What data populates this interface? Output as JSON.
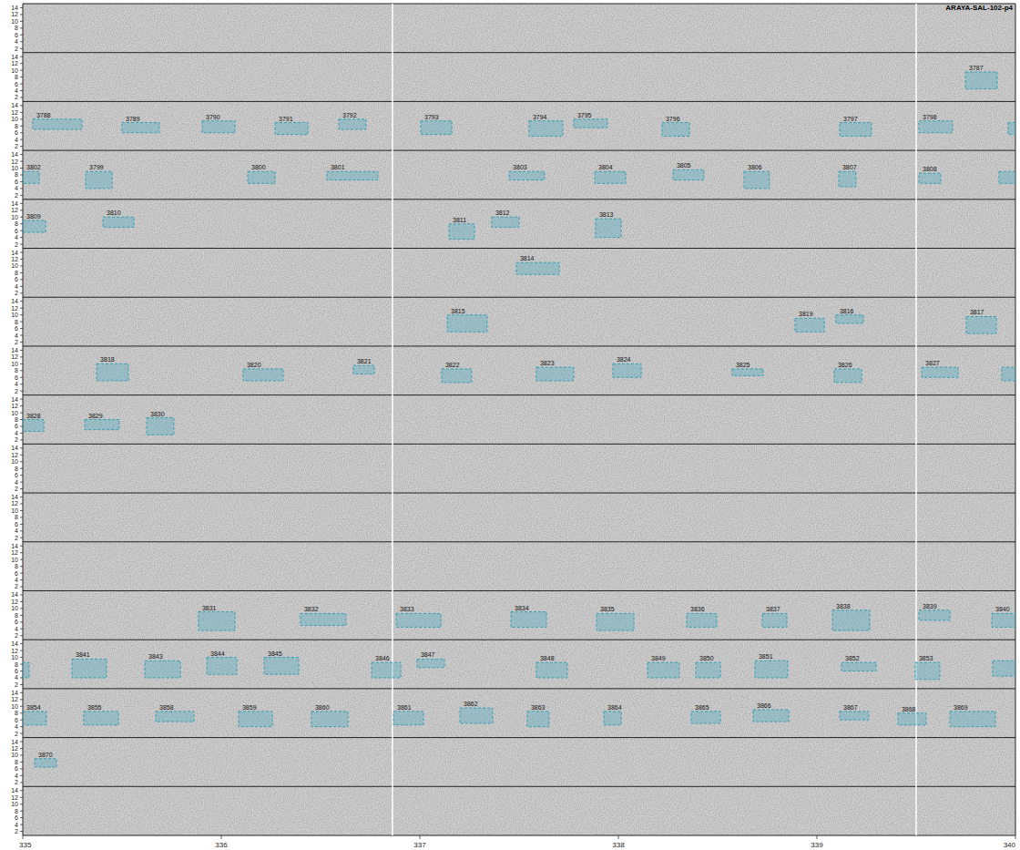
{
  "chart_data": {
    "type": "spectrogram",
    "title": "ARAYA-SAL-102-p4",
    "xlim": [
      335,
      340
    ],
    "xticks": [
      335,
      336,
      337,
      338,
      339,
      340
    ],
    "ylim": [
      0.8,
      15.2
    ],
    "yticks": [
      2,
      4,
      6,
      8,
      10,
      12,
      14
    ],
    "rows": 17,
    "segment_boundaries": [
      336.862,
      339.5
    ],
    "detections": [
      {
        "label": 3787,
        "row": 1,
        "x0": 339.748,
        "x1": 339.908,
        "y0": 4.5,
        "y1": 9.5
      },
      {
        "label": 3788,
        "row": 2,
        "x0": 335.05,
        "x1": 335.298,
        "y0": 7,
        "y1": 10
      },
      {
        "label": 3789,
        "row": 2,
        "x0": 335.5,
        "x1": 335.688,
        "y0": 6,
        "y1": 9
      },
      {
        "label": 3790,
        "row": 2,
        "x0": 335.904,
        "x1": 336.069,
        "y0": 6,
        "y1": 9.5
      },
      {
        "label": 3791,
        "row": 2,
        "x0": 336.271,
        "x1": 336.436,
        "y0": 5.5,
        "y1": 9
      },
      {
        "label": 3792,
        "row": 2,
        "x0": 336.592,
        "x1": 336.729,
        "y0": 7,
        "y1": 10
      },
      {
        "label": 3793,
        "row": 2,
        "x0": 337.005,
        "x1": 337.161,
        "y0": 5.5,
        "y1": 9.5
      },
      {
        "label": 3794,
        "row": 2,
        "x0": 337.55,
        "x1": 337.72,
        "y0": 5,
        "y1": 9.5
      },
      {
        "label": 3795,
        "row": 2,
        "x0": 337.775,
        "x1": 337.945,
        "y0": 7.5,
        "y1": 10
      },
      {
        "label": 3796,
        "row": 2,
        "x0": 338.22,
        "x1": 338.358,
        "y0": 5,
        "y1": 9
      },
      {
        "label": 3797,
        "row": 2,
        "x0": 339.115,
        "x1": 339.275,
        "y0": 5,
        "y1": 9
      },
      {
        "label": 3798,
        "row": 2,
        "x0": 339.514,
        "x1": 339.683,
        "y0": 6,
        "y1": 9.5
      },
      {
        "label": null,
        "row": 2,
        "x0": 339.963,
        "x1": 340,
        "y0": 5.5,
        "y1": 9
      },
      {
        "label": 3802,
        "row": 3,
        "x0": 335,
        "x1": 335.083,
        "y0": 5.5,
        "y1": 9
      },
      {
        "label": 3799,
        "row": 3,
        "x0": 335.317,
        "x1": 335.45,
        "y0": 4,
        "y1": 9
      },
      {
        "label": 3800,
        "row": 3,
        "x0": 336.133,
        "x1": 336.271,
        "y0": 5.5,
        "y1": 9
      },
      {
        "label": 3801,
        "row": 3,
        "x0": 336.532,
        "x1": 336.789,
        "y0": 6.5,
        "y1": 9
      },
      {
        "label": 3803,
        "row": 3,
        "x0": 337.45,
        "x1": 337.628,
        "y0": 6.5,
        "y1": 9
      },
      {
        "label": 3804,
        "row": 3,
        "x0": 337.881,
        "x1": 338.037,
        "y0": 5.5,
        "y1": 9
      },
      {
        "label": 3805,
        "row": 3,
        "x0": 338.275,
        "x1": 338.431,
        "y0": 6.5,
        "y1": 9.5
      },
      {
        "label": 3806,
        "row": 3,
        "x0": 338.633,
        "x1": 338.761,
        "y0": 4,
        "y1": 9
      },
      {
        "label": 3807,
        "row": 3,
        "x0": 339.11,
        "x1": 339.197,
        "y0": 4.5,
        "y1": 9
      },
      {
        "label": 3808,
        "row": 3,
        "x0": 339.514,
        "x1": 339.624,
        "y0": 5.5,
        "y1": 8.5
      },
      {
        "label": null,
        "row": 3,
        "x0": 339.917,
        "x1": 340,
        "y0": 5.5,
        "y1": 9
      },
      {
        "label": 3809,
        "row": 4,
        "x0": 335,
        "x1": 335.115,
        "y0": 5.5,
        "y1": 9
      },
      {
        "label": 3810,
        "row": 4,
        "x0": 335.404,
        "x1": 335.56,
        "y0": 7,
        "y1": 10
      },
      {
        "label": 3811,
        "row": 4,
        "x0": 337.147,
        "x1": 337.275,
        "y0": 3.5,
        "y1": 8
      },
      {
        "label": 3812,
        "row": 4,
        "x0": 337.362,
        "x1": 337.5,
        "y0": 7,
        "y1": 10
      },
      {
        "label": 3813,
        "row": 4,
        "x0": 337.885,
        "x1": 338.014,
        "y0": 4,
        "y1": 9.5
      },
      {
        "label": 3814,
        "row": 5,
        "x0": 337.486,
        "x1": 337.702,
        "y0": 7.5,
        "y1": 11
      },
      {
        "label": 3815,
        "row": 6,
        "x0": 337.138,
        "x1": 337.339,
        "y0": 5,
        "y1": 10
      },
      {
        "label": 3819,
        "row": 6,
        "x0": 338.89,
        "x1": 339.037,
        "y0": 5,
        "y1": 9
      },
      {
        "label": 3816,
        "row": 6,
        "x0": 339.096,
        "x1": 339.234,
        "y0": 7.5,
        "y1": 10
      },
      {
        "label": 3817,
        "row": 6,
        "x0": 339.752,
        "x1": 339.904,
        "y0": 4.5,
        "y1": 9.5
      },
      {
        "label": 3818,
        "row": 7,
        "x0": 335.372,
        "x1": 335.532,
        "y0": 5,
        "y1": 10
      },
      {
        "label": 3820,
        "row": 7,
        "x0": 336.11,
        "x1": 336.312,
        "y0": 5,
        "y1": 8.5
      },
      {
        "label": 3821,
        "row": 7,
        "x0": 336.665,
        "x1": 336.771,
        "y0": 7,
        "y1": 9.5
      },
      {
        "label": 3822,
        "row": 7,
        "x0": 337.11,
        "x1": 337.261,
        "y0": 4.5,
        "y1": 8.5
      },
      {
        "label": 3823,
        "row": 7,
        "x0": 337.587,
        "x1": 337.775,
        "y0": 5,
        "y1": 9
      },
      {
        "label": 3824,
        "row": 7,
        "x0": 337.972,
        "x1": 338.115,
        "y0": 6,
        "y1": 10
      },
      {
        "label": 3825,
        "row": 7,
        "x0": 338.573,
        "x1": 338.729,
        "y0": 6.5,
        "y1": 8.5
      },
      {
        "label": 3826,
        "row": 7,
        "x0": 339.087,
        "x1": 339.225,
        "y0": 4.5,
        "y1": 8.5
      },
      {
        "label": 3827,
        "row": 7,
        "x0": 339.528,
        "x1": 339.711,
        "y0": 6,
        "y1": 9
      },
      {
        "label": null,
        "row": 7,
        "x0": 339.931,
        "x1": 340,
        "y0": 5,
        "y1": 9
      },
      {
        "label": 3828,
        "row": 8,
        "x0": 335,
        "x1": 335.106,
        "y0": 4.5,
        "y1": 8
      },
      {
        "label": 3829,
        "row": 8,
        "x0": 335.312,
        "x1": 335.486,
        "y0": 5,
        "y1": 8
      },
      {
        "label": 3830,
        "row": 8,
        "x0": 335.624,
        "x1": 335.761,
        "y0": 3.5,
        "y1": 8.5
      },
      {
        "label": 3831,
        "row": 12,
        "x0": 335.885,
        "x1": 336.069,
        "y0": 3.5,
        "y1": 9
      },
      {
        "label": 3832,
        "row": 12,
        "x0": 336.399,
        "x1": 336.628,
        "y0": 5,
        "y1": 8.5
      },
      {
        "label": 3833,
        "row": 12,
        "x0": 336.881,
        "x1": 337.106,
        "y0": 4.5,
        "y1": 8.5
      },
      {
        "label": 3834,
        "row": 12,
        "x0": 337.459,
        "x1": 337.638,
        "y0": 4.5,
        "y1": 9
      },
      {
        "label": 3835,
        "row": 12,
        "x0": 337.89,
        "x1": 338.078,
        "y0": 3.5,
        "y1": 8.5
      },
      {
        "label": 3836,
        "row": 12,
        "x0": 338.344,
        "x1": 338.495,
        "y0": 4.5,
        "y1": 8.5
      },
      {
        "label": 3837,
        "row": 12,
        "x0": 338.725,
        "x1": 338.849,
        "y0": 4.5,
        "y1": 8.5
      },
      {
        "label": 3838,
        "row": 12,
        "x0": 339.078,
        "x1": 339.266,
        "y0": 3.5,
        "y1": 9.5
      },
      {
        "label": 3839,
        "row": 12,
        "x0": 339.514,
        "x1": 339.67,
        "y0": 6.5,
        "y1": 9.5
      },
      {
        "label": 3840,
        "row": 12,
        "x0": 339.881,
        "x1": 340,
        "y0": 4.5,
        "y1": 8.5
      },
      {
        "label": null,
        "row": 13,
        "x0": 335,
        "x1": 335.032,
        "y0": 4,
        "y1": 8.5
      },
      {
        "label": 3841,
        "row": 13,
        "x0": 335.248,
        "x1": 335.422,
        "y0": 4,
        "y1": 9.5
      },
      {
        "label": 3843,
        "row": 13,
        "x0": 335.615,
        "x1": 335.794,
        "y0": 4,
        "y1": 9
      },
      {
        "label": 3844,
        "row": 13,
        "x0": 335.927,
        "x1": 336.078,
        "y0": 5,
        "y1": 10
      },
      {
        "label": 3845,
        "row": 13,
        "x0": 336.216,
        "x1": 336.39,
        "y0": 5,
        "y1": 10
      },
      {
        "label": 3846,
        "row": 13,
        "x0": 336.757,
        "x1": 336.904,
        "y0": 4,
        "y1": 8.5
      },
      {
        "label": 3847,
        "row": 13,
        "x0": 336.986,
        "x1": 337.124,
        "y0": 7,
        "y1": 9.5
      },
      {
        "label": 3848,
        "row": 13,
        "x0": 337.587,
        "x1": 337.743,
        "y0": 4,
        "y1": 8.5
      },
      {
        "label": 3849,
        "row": 13,
        "x0": 338.147,
        "x1": 338.307,
        "y0": 4,
        "y1": 8.5
      },
      {
        "label": 3850,
        "row": 13,
        "x0": 338.39,
        "x1": 338.514,
        "y0": 4,
        "y1": 8.5
      },
      {
        "label": 3851,
        "row": 13,
        "x0": 338.688,
        "x1": 338.853,
        "y0": 4,
        "y1": 9
      },
      {
        "label": 3852,
        "row": 13,
        "x0": 339.124,
        "x1": 339.298,
        "y0": 6,
        "y1": 8.5
      },
      {
        "label": 3853,
        "row": 13,
        "x0": 339.495,
        "x1": 339.619,
        "y0": 3.5,
        "y1": 8.5
      },
      {
        "label": null,
        "row": 13,
        "x0": 339.885,
        "x1": 340,
        "y0": 4.5,
        "y1": 9
      },
      {
        "label": 3854,
        "row": 14,
        "x0": 335,
        "x1": 335.119,
        "y0": 4.5,
        "y1": 8.5
      },
      {
        "label": 3855,
        "row": 14,
        "x0": 335.307,
        "x1": 335.482,
        "y0": 4.5,
        "y1": 8.5
      },
      {
        "label": 3858,
        "row": 14,
        "x0": 335.67,
        "x1": 335.862,
        "y0": 5.5,
        "y1": 8.5
      },
      {
        "label": 3859,
        "row": 14,
        "x0": 336.087,
        "x1": 336.257,
        "y0": 4,
        "y1": 8.5
      },
      {
        "label": 3860,
        "row": 14,
        "x0": 336.454,
        "x1": 336.638,
        "y0": 4,
        "y1": 8.5
      },
      {
        "label": 3861,
        "row": 14,
        "x0": 336.867,
        "x1": 337.018,
        "y0": 4.5,
        "y1": 8.5
      },
      {
        "label": 3862,
        "row": 14,
        "x0": 337.202,
        "x1": 337.367,
        "y0": 5,
        "y1": 9.5
      },
      {
        "label": 3863,
        "row": 14,
        "x0": 337.541,
        "x1": 337.651,
        "y0": 4,
        "y1": 8.5
      },
      {
        "label": 3864,
        "row": 14,
        "x0": 337.927,
        "x1": 338.014,
        "y0": 4.5,
        "y1": 8.5
      },
      {
        "label": 3865,
        "row": 14,
        "x0": 338.367,
        "x1": 338.514,
        "y0": 5,
        "y1": 8.5
      },
      {
        "label": 3866,
        "row": 14,
        "x0": 338.679,
        "x1": 338.858,
        "y0": 5.5,
        "y1": 9
      },
      {
        "label": 3867,
        "row": 14,
        "x0": 339.115,
        "x1": 339.261,
        "y0": 6,
        "y1": 8.5
      },
      {
        "label": 3868,
        "row": 14,
        "x0": 339.408,
        "x1": 339.55,
        "y0": 4.5,
        "y1": 8
      },
      {
        "label": 3869,
        "row": 14,
        "x0": 339.67,
        "x1": 339.899,
        "y0": 4,
        "y1": 8.5
      },
      {
        "label": 3870,
        "row": 15,
        "x0": 335.06,
        "x1": 335.17,
        "y0": 6.5,
        "y1": 9
      }
    ]
  }
}
